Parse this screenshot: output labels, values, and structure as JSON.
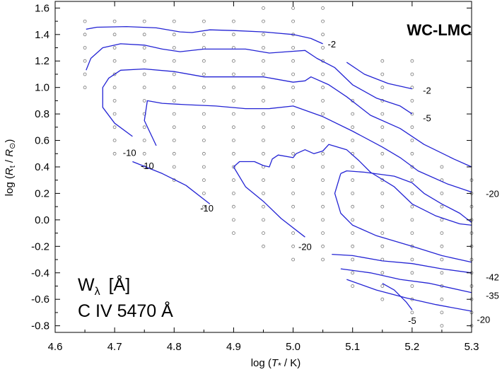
{
  "chart_data": {
    "type": "line",
    "title": "WC-LMC",
    "xlabel_parts": {
      "prefix": "log (",
      "var": "T",
      "sub": "*",
      "suffix": " / K)"
    },
    "ylabel_parts": {
      "prefix": "log (",
      "var": "R",
      "sub": "t",
      "mid": " / ",
      "var2": "R",
      "sub2": "⊙",
      "suffix": ")"
    },
    "xlim": [
      4.6,
      5.3
    ],
    "ylim": [
      -0.85,
      1.65
    ],
    "xticks": [
      "4.6",
      "4.7",
      "4.8",
      "4.9",
      "5.0",
      "5.1",
      "5.2",
      "5.3"
    ],
    "yticks": [
      "1.6",
      "1.4",
      "1.2",
      "1.0",
      "0.8",
      "0.6",
      "0.4",
      "0.2",
      "0.0",
      "-0.2",
      "-0.4",
      "-0.6",
      "-0.8"
    ],
    "legend_line1": "W",
    "legend_line1_sub": "λ",
    "legend_line1_unit": "[Å]",
    "legend_line2": "C IV 5470 Å",
    "grid_points": {
      "x": [
        4.65,
        4.7,
        4.75,
        4.8,
        4.85,
        4.9,
        4.95,
        5.0,
        5.05,
        5.1,
        5.15,
        5.2,
        5.25,
        5.3
      ],
      "y_ranges": [
        [
          1.0,
          1.5
        ],
        [
          0.5,
          1.5
        ],
        [
          0.4,
          1.5
        ],
        [
          0.3,
          1.5
        ],
        [
          0.1,
          1.5
        ],
        [
          -0.1,
          1.5
        ],
        [
          -0.2,
          1.65
        ],
        [
          -0.3,
          1.65
        ],
        [
          -0.3,
          1.65
        ],
        [
          -0.5,
          0.9
        ],
        [
          -0.6,
          1.2
        ],
        [
          -0.7,
          1.2
        ],
        [
          -0.8,
          0.4
        ],
        [
          -0.8,
          0.3
        ]
      ]
    },
    "contours": [
      {
        "label": "-2",
        "points": [
          [
            4.652,
            1.44
          ],
          [
            4.67,
            1.455
          ],
          [
            4.72,
            1.46
          ],
          [
            4.77,
            1.45
          ],
          [
            4.81,
            1.42
          ],
          [
            4.83,
            1.415
          ],
          [
            4.86,
            1.435
          ],
          [
            4.9,
            1.43
          ],
          [
            4.95,
            1.42
          ],
          [
            5.0,
            1.4
          ],
          [
            5.03,
            1.37
          ],
          [
            5.05,
            1.33
          ]
        ]
      },
      {
        "label": "-2",
        "points": [
          [
            5.09,
            1.19
          ],
          [
            5.12,
            1.1
          ],
          [
            5.16,
            1.03
          ],
          [
            5.2,
            0.99
          ]
        ]
      },
      {
        "label": "-5",
        "points": [
          [
            4.652,
            1.13
          ],
          [
            4.66,
            1.22
          ],
          [
            4.68,
            1.3
          ],
          [
            4.71,
            1.33
          ],
          [
            4.75,
            1.32
          ],
          [
            4.78,
            1.29
          ],
          [
            4.81,
            1.27
          ],
          [
            4.85,
            1.29
          ],
          [
            4.88,
            1.29
          ],
          [
            4.92,
            1.29
          ],
          [
            4.96,
            1.26
          ],
          [
            4.99,
            1.27
          ],
          [
            5.02,
            1.28
          ],
          [
            5.04,
            1.22
          ],
          [
            5.07,
            1.15
          ],
          [
            5.1,
            1.02
          ],
          [
            5.14,
            0.92
          ],
          [
            5.18,
            0.86
          ],
          [
            5.2,
            0.8
          ]
        ]
      },
      {
        "label": "-10",
        "points": [
          [
            4.73,
            0.63
          ],
          [
            4.7,
            0.73
          ],
          [
            4.68,
            0.85
          ],
          [
            4.68,
            1.0
          ],
          [
            4.69,
            1.07
          ],
          [
            4.71,
            1.13
          ],
          [
            4.75,
            1.14
          ],
          [
            4.8,
            1.12
          ],
          [
            4.85,
            1.08
          ],
          [
            4.9,
            1.08
          ],
          [
            4.95,
            1.08
          ],
          [
            5.0,
            1.04
          ],
          [
            5.02,
            1.05
          ],
          [
            5.03,
            1.08
          ],
          [
            5.06,
            1.02
          ],
          [
            5.09,
            0.93
          ],
          [
            5.13,
            0.79
          ],
          [
            5.18,
            0.69
          ],
          [
            5.22,
            0.57
          ],
          [
            5.27,
            0.46
          ],
          [
            5.3,
            0.4
          ]
        ]
      },
      {
        "label": "-10",
        "points": [
          [
            4.77,
            0.56
          ],
          [
            4.75,
            0.75
          ],
          [
            4.755,
            0.9
          ],
          [
            4.78,
            0.88
          ],
          [
            4.82,
            0.87
          ],
          [
            4.87,
            0.86
          ],
          [
            4.92,
            0.84
          ],
          [
            4.96,
            0.84
          ],
          [
            5.0,
            0.86
          ],
          [
            5.05,
            0.78
          ],
          [
            5.1,
            0.67
          ],
          [
            5.15,
            0.55
          ],
          [
            5.18,
            0.47
          ],
          [
            5.21,
            0.37
          ],
          [
            5.26,
            0.27
          ],
          [
            5.3,
            0.21
          ]
        ]
      },
      {
        "label": "-10",
        "points": [
          [
            4.73,
            0.44
          ],
          [
            4.78,
            0.35
          ],
          [
            4.82,
            0.26
          ],
          [
            4.86,
            0.12
          ]
        ]
      },
      {
        "label": "-20",
        "points": [
          [
            4.9,
            0.4
          ],
          [
            4.91,
            0.44
          ],
          [
            4.935,
            0.44
          ],
          [
            4.95,
            0.41
          ],
          [
            4.96,
            0.4
          ],
          [
            4.965,
            0.46
          ],
          [
            4.975,
            0.49
          ],
          [
            5.0,
            0.47
          ],
          [
            5.005,
            0.5
          ],
          [
            5.02,
            0.53
          ],
          [
            5.035,
            0.5
          ],
          [
            5.05,
            0.52
          ],
          [
            5.06,
            0.57
          ],
          [
            5.09,
            0.53
          ],
          [
            5.11,
            0.45
          ],
          [
            5.13,
            0.36
          ],
          [
            5.17,
            0.25
          ],
          [
            5.2,
            0.12
          ],
          [
            5.24,
            0.03
          ],
          [
            5.28,
            -0.03
          ],
          [
            5.3,
            -0.04
          ]
        ]
      },
      {
        "label": "-20",
        "points": [
          [
            4.9,
            0.4
          ],
          [
            4.92,
            0.25
          ],
          [
            4.95,
            0.14
          ],
          [
            4.98,
            0.01
          ],
          [
            5.02,
            -0.13
          ]
        ]
      },
      {
        "label": "-20",
        "points": [
          [
            5.08,
            0.35
          ],
          [
            5.09,
            0.37
          ],
          [
            5.12,
            0.36
          ],
          [
            5.17,
            0.33
          ],
          [
            5.2,
            0.28
          ],
          [
            5.22,
            0.2
          ],
          [
            5.25,
            0.12
          ],
          [
            5.28,
            0.05
          ],
          [
            5.3,
            -0.02
          ]
        ]
      },
      {
        "label": "-20",
        "points": [
          [
            5.08,
            0.35
          ],
          [
            5.07,
            0.2
          ],
          [
            5.08,
            0.05
          ],
          [
            5.1,
            -0.04
          ],
          [
            5.14,
            -0.12
          ],
          [
            5.2,
            -0.2
          ],
          [
            5.25,
            -0.27
          ],
          [
            5.3,
            -0.32
          ]
        ]
      },
      {
        "label": "-42",
        "points": [
          [
            5.065,
            -0.26
          ],
          [
            5.1,
            -0.27
          ],
          [
            5.15,
            -0.31
          ],
          [
            5.2,
            -0.33
          ],
          [
            5.25,
            -0.37
          ],
          [
            5.3,
            -0.4
          ]
        ]
      },
      {
        "label": "-35",
        "points": [
          [
            5.08,
            -0.37
          ],
          [
            5.13,
            -0.4
          ],
          [
            5.18,
            -0.45
          ],
          [
            5.23,
            -0.48
          ],
          [
            5.3,
            -0.55
          ]
        ]
      },
      {
        "label": "-20",
        "points": [
          [
            5.09,
            -0.45
          ],
          [
            5.14,
            -0.53
          ],
          [
            5.19,
            -0.59
          ],
          [
            5.24,
            -0.64
          ],
          [
            5.3,
            -0.69
          ]
        ]
      },
      {
        "label": "-5",
        "points": [
          [
            5.15,
            -0.48
          ],
          [
            5.17,
            -0.53
          ],
          [
            5.19,
            -0.62
          ],
          [
            5.2,
            -0.68
          ]
        ]
      }
    ],
    "contour_labels": [
      {
        "text": "-2",
        "x": 5.065,
        "y": 1.33
      },
      {
        "text": "-2",
        "x": 5.225,
        "y": 0.98
      },
      {
        "text": "-5",
        "x": 5.225,
        "y": 0.77
      },
      {
        "text": "-10",
        "x": 4.725,
        "y": 0.51
      },
      {
        "text": "-10",
        "x": 4.755,
        "y": 0.41
      },
      {
        "text": "-10",
        "x": 4.855,
        "y": 0.09
      },
      {
        "text": "-20",
        "x": 5.02,
        "y": -0.2
      },
      {
        "text": "-20",
        "x": 5.335,
        "y": 0.2
      },
      {
        "text": "-42",
        "x": 5.335,
        "y": -0.43
      },
      {
        "text": "-35",
        "x": 5.335,
        "y": -0.57
      },
      {
        "text": "-20",
        "x": 5.32,
        "y": -0.75
      },
      {
        "text": "-5",
        "x": 5.2,
        "y": -0.76
      }
    ],
    "colors": {
      "contour": "#2323d4",
      "grid_point": "#777777",
      "axis": "#000000"
    }
  }
}
